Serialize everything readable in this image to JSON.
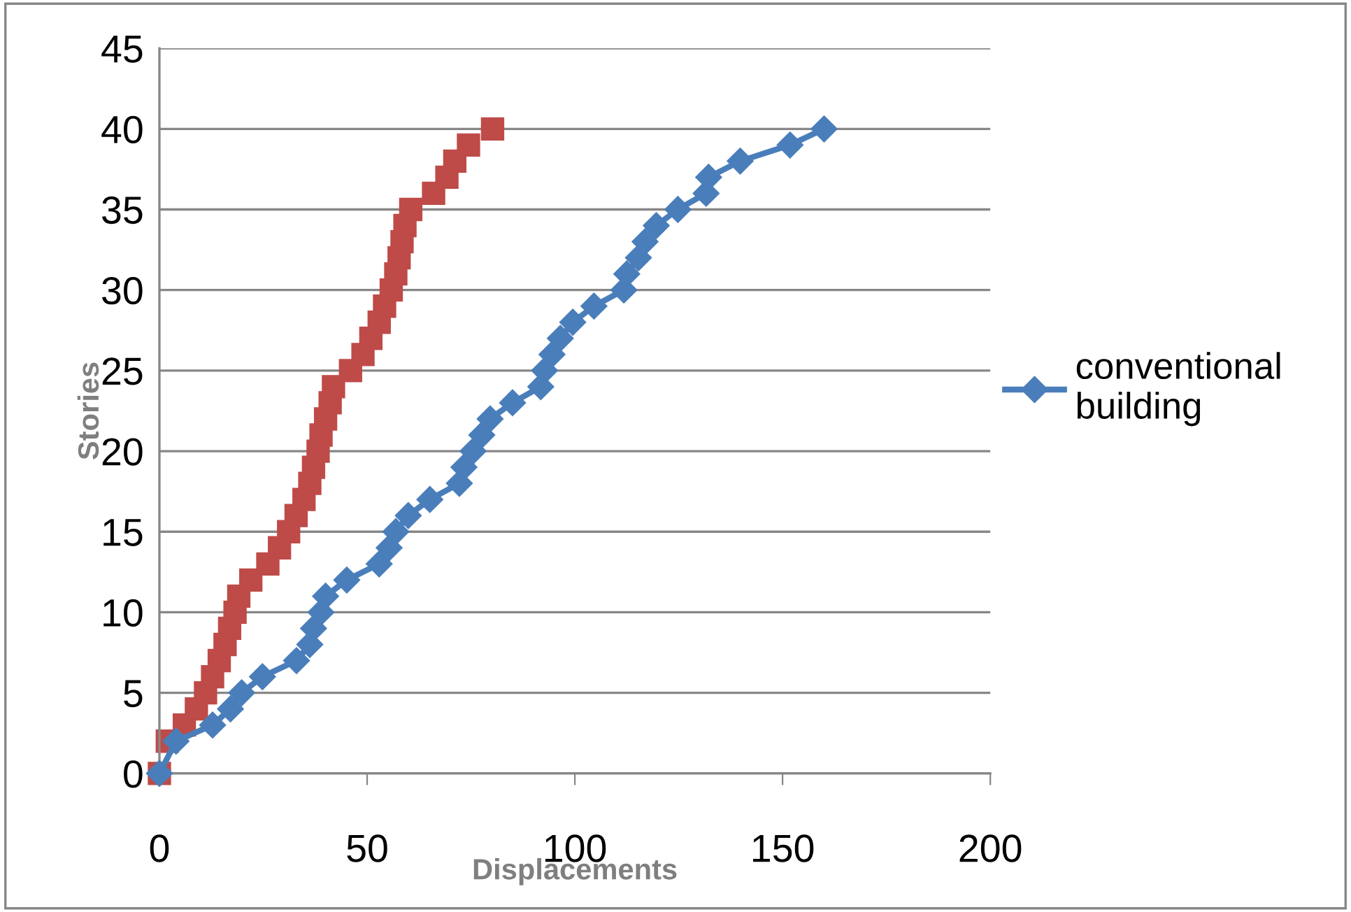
{
  "chart_data": {
    "type": "line",
    "xlabel": "Displacements",
    "ylabel": "Stories",
    "xlim": [
      0,
      200
    ],
    "ylim": [
      0,
      45
    ],
    "xticks": [
      0,
      50,
      100,
      150,
      200
    ],
    "yticks": [
      0,
      5,
      10,
      15,
      20,
      25,
      30,
      35,
      40,
      45
    ],
    "grid": "y",
    "legend": "right",
    "line_style": "solid",
    "series": [
      {
        "name": "conventional building",
        "color": "#4a7ebb",
        "marker": "diamond",
        "x": [
          0,
          4,
          12.8,
          17.1,
          19.8,
          24.8,
          33,
          36.2,
          37.1,
          38.9,
          40,
          45.1,
          52.9,
          55.3,
          56.9,
          59.9,
          65.1,
          72.2,
          73.3,
          75.5,
          77.6,
          79.6,
          85,
          91.8,
          92.7,
          94.5,
          96.5,
          99.5,
          104.6,
          111.8,
          112.5,
          115.3,
          116.9,
          119.6,
          124.8,
          131.6,
          132.2,
          139.8,
          151.8,
          160
        ],
        "values": [
          0,
          2,
          3,
          4,
          5,
          6,
          7,
          8,
          9,
          10,
          11,
          12,
          13,
          14,
          15,
          16,
          17,
          18,
          19,
          20,
          21,
          22,
          23,
          24,
          25,
          26,
          27,
          28,
          29,
          30,
          31,
          32,
          33,
          34,
          35,
          36,
          37,
          38,
          39,
          40
        ]
      },
      {
        "type": "scatter",
        "color": "#be4b48",
        "marker": "square",
        "x": [
          0,
          null,
          1.9,
          6,
          8.9,
          11.1,
          12.8,
          14.4,
          15.8,
          16.9,
          18.2,
          19.1,
          22,
          26.1,
          28.9,
          31.1,
          32.9,
          34.8,
          36.2,
          37.1,
          38.2,
          38.9,
          40,
          41.1,
          41.9,
          46,
          49,
          50.9,
          52.9,
          54.2,
          55.8,
          56.9,
          57.7,
          58.4,
          59.1,
          60.5,
          66,
          69.2,
          71.1,
          74.4,
          80.2
        ],
        "values": [
          0,
          null,
          2,
          3,
          4,
          5,
          6,
          7,
          8,
          9,
          10,
          11,
          12,
          13,
          14,
          15,
          16,
          17,
          18,
          19,
          20,
          21,
          22,
          23,
          24,
          25,
          26,
          27,
          28,
          29,
          30,
          31,
          32,
          33,
          34,
          35,
          36,
          37,
          38,
          39,
          40
        ]
      }
    ]
  }
}
